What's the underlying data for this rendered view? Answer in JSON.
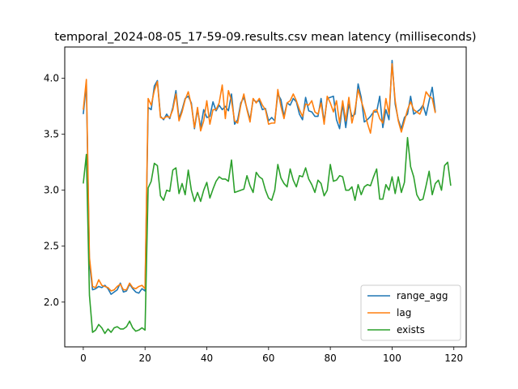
{
  "chart_data": {
    "type": "line",
    "title": "temporal_2024-08-05_17-59-09.results.csv mean latency (milliseconds)",
    "xlabel": "",
    "ylabel": "",
    "xlim": [
      -6,
      124
    ],
    "ylim": [
      1.6,
      4.28
    ],
    "xticks": [
      0,
      20,
      40,
      60,
      80,
      100,
      120
    ],
    "yticks": [
      2.0,
      2.5,
      3.0,
      3.5,
      4.0
    ],
    "ytick_labels": [
      "2.0",
      "2.5",
      "3.0",
      "3.5",
      "4.0"
    ],
    "grid": false,
    "legend_position": "lower right",
    "series": [
      {
        "name": "range_agg",
        "color": "#1f77b4",
        "values": [
          3.68,
          3.95,
          2.35,
          2.11,
          2.12,
          2.14,
          2.13,
          2.15,
          2.12,
          2.07,
          2.09,
          2.11,
          2.17,
          2.09,
          2.1,
          2.16,
          2.12,
          2.09,
          2.08,
          2.12,
          2.1,
          3.74,
          3.72,
          3.93,
          3.98,
          3.66,
          3.63,
          3.68,
          3.64,
          3.74,
          3.89,
          3.64,
          3.72,
          3.82,
          3.84,
          3.78,
          3.55,
          3.72,
          3.56,
          3.72,
          3.65,
          3.66,
          3.79,
          3.71,
          3.76,
          3.72,
          3.75,
          3.71,
          3.86,
          3.59,
          3.63,
          3.78,
          3.83,
          3.73,
          3.63,
          3.81,
          3.79,
          3.8,
          3.72,
          3.73,
          3.62,
          3.65,
          3.62,
          3.86,
          3.81,
          3.66,
          3.78,
          3.76,
          3.82,
          3.79,
          3.68,
          3.63,
          3.83,
          3.71,
          3.7,
          3.66,
          3.66,
          3.82,
          3.61,
          3.82,
          3.83,
          3.84,
          3.63,
          3.55,
          3.77,
          3.56,
          3.77,
          3.66,
          3.68,
          3.95,
          3.83,
          3.61,
          3.63,
          3.66,
          3.7,
          3.7,
          3.84,
          3.56,
          3.72,
          3.63,
          4.16,
          3.77,
          3.63,
          3.55,
          3.65,
          3.68,
          3.84,
          3.68,
          3.7,
          3.72,
          3.76,
          3.67,
          3.8,
          3.92,
          3.7
        ]
      },
      {
        "name": "lag",
        "color": "#ff7f0e",
        "values": [
          3.72,
          3.99,
          2.4,
          2.14,
          2.13,
          2.2,
          2.15,
          2.14,
          2.13,
          2.1,
          2.11,
          2.14,
          2.16,
          2.11,
          2.11,
          2.17,
          2.13,
          2.12,
          2.14,
          2.15,
          2.12,
          3.82,
          3.76,
          3.89,
          3.97,
          3.65,
          3.64,
          3.66,
          3.65,
          3.72,
          3.86,
          3.62,
          3.7,
          3.81,
          3.88,
          3.76,
          3.56,
          3.74,
          3.53,
          3.62,
          3.8,
          3.59,
          3.72,
          3.72,
          3.78,
          3.94,
          3.64,
          3.89,
          3.8,
          3.62,
          3.6,
          3.76,
          3.86,
          3.72,
          3.61,
          3.82,
          3.78,
          3.82,
          3.76,
          3.72,
          3.59,
          3.6,
          3.6,
          3.9,
          3.75,
          3.64,
          3.78,
          3.8,
          3.86,
          3.8,
          3.72,
          3.66,
          3.77,
          3.76,
          3.8,
          3.7,
          3.68,
          3.78,
          3.59,
          3.84,
          3.78,
          3.7,
          3.8,
          3.6,
          3.8,
          3.62,
          3.83,
          3.6,
          3.72,
          3.9,
          3.8,
          3.71,
          3.6,
          3.51,
          3.71,
          3.72,
          3.64,
          3.6,
          3.82,
          3.68,
          4.13,
          3.8,
          3.62,
          3.52,
          3.62,
          3.72,
          3.79,
          3.72,
          3.7,
          3.68,
          3.75,
          3.88,
          3.84,
          3.82,
          3.69
        ]
      },
      {
        "name": "exists",
        "color": "#2ca02c",
        "values": [
          3.06,
          3.32,
          2.06,
          1.73,
          1.75,
          1.8,
          1.77,
          1.72,
          1.76,
          1.73,
          1.77,
          1.78,
          1.76,
          1.76,
          1.78,
          1.83,
          1.77,
          1.74,
          1.75,
          1.77,
          1.75,
          3.02,
          3.08,
          3.24,
          3.22,
          2.95,
          2.91,
          3.0,
          2.99,
          3.18,
          3.2,
          2.97,
          3.06,
          2.96,
          3.18,
          3.0,
          2.9,
          2.98,
          2.9,
          3.0,
          3.07,
          2.93,
          3.01,
          3.08,
          3.12,
          3.1,
          3.1,
          3.08,
          3.27,
          2.98,
          2.99,
          3.0,
          3.01,
          3.13,
          3.04,
          2.98,
          3.16,
          3.12,
          3.1,
          3.0,
          2.93,
          2.91,
          3.0,
          3.23,
          3.11,
          3.06,
          3.03,
          3.19,
          3.09,
          3.03,
          3.13,
          3.12,
          3.2,
          3.1,
          3.05,
          2.98,
          3.09,
          3.06,
          2.95,
          3.0,
          3.23,
          3.08,
          3.09,
          3.13,
          3.12,
          3.0,
          3.0,
          3.03,
          2.91,
          3.05,
          2.96,
          3.03,
          3.05,
          3.04,
          3.12,
          3.19,
          2.92,
          2.92,
          3.05,
          3.0,
          3.12,
          2.97,
          3.12,
          2.98,
          3.07,
          3.47,
          3.21,
          3.12,
          2.96,
          2.91,
          2.92,
          3.04,
          3.17,
          2.96,
          3.06,
          3.09,
          3.0,
          3.22,
          3.25,
          3.04
        ]
      }
    ]
  }
}
